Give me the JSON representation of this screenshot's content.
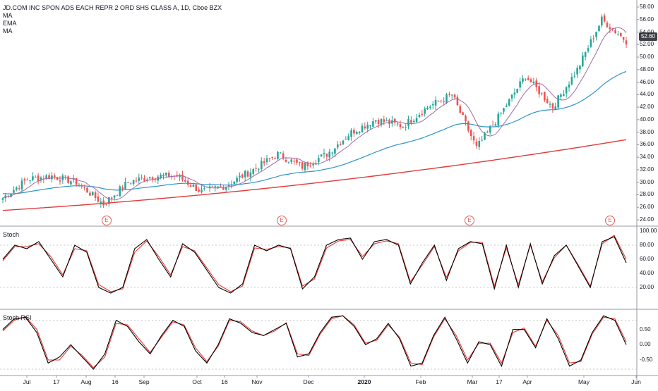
{
  "header": {
    "symbol": "JD.COM INC SPON ADS EACH REPR 2 ORD SHS CLASS A, 1D, Cboe BZX",
    "indicators": [
      "MA",
      "EMA",
      "MA"
    ]
  },
  "price_badge": "52.60",
  "earnings_marker": "E",
  "panes": {
    "stoch_title": "Stoch",
    "stochrsi_title": "Stoch RSI"
  },
  "colors": {
    "up": "#26a69a",
    "down": "#ef5350",
    "ma200": "#e03b3b",
    "ema": "#2b95c8",
    "ma_short": "#9c6aa6",
    "stoch_k": "#000000",
    "stoch_d": "#e53935"
  },
  "chart_data": [
    {
      "type": "candlestick",
      "title": "JD.COM INC SPON ADS EACH REPR 2 ORD SHS CLASS A, 1D, Cboe BZX",
      "y_ticks": [
        "58.00",
        "56.00",
        "54.00",
        "52.00",
        "50.00",
        "48.00",
        "46.00",
        "44.00",
        "42.00",
        "40.00",
        "38.00",
        "36.00",
        "34.00",
        "32.00",
        "30.00",
        "28.00",
        "26.00",
        "24.00"
      ],
      "ylim": [
        24,
        58
      ],
      "x_ticks": [
        "Jul",
        "17",
        "Aug",
        "16",
        "Sep",
        "Oct",
        "16",
        "Nov",
        "Dec",
        "2020",
        "Feb",
        "Mar",
        "17",
        "Apr",
        "May",
        "Jun"
      ],
      "approx_close_path": [
        {
          "t": "Jun-20",
          "v": 27.5
        },
        {
          "t": "Jul-01",
          "v": 30.5
        },
        {
          "t": "Jul-17",
          "v": 31.0
        },
        {
          "t": "Aug-01",
          "v": 30.0
        },
        {
          "t": "Aug-07",
          "v": 26.5
        },
        {
          "t": "Aug-16",
          "v": 30.0
        },
        {
          "t": "Sep-01",
          "v": 31.0
        },
        {
          "t": "Sep-16",
          "v": 31.0
        },
        {
          "t": "Oct-01",
          "v": 28.5
        },
        {
          "t": "Oct-16",
          "v": 29.5
        },
        {
          "t": "Nov-01",
          "v": 32.0
        },
        {
          "t": "Nov-15",
          "v": 34.5
        },
        {
          "t": "Dec-01",
          "v": 32.5
        },
        {
          "t": "Dec-16",
          "v": 34.5
        },
        {
          "t": "2020-01",
          "v": 38.0
        },
        {
          "t": "Jan-15",
          "v": 40.0
        },
        {
          "t": "Feb-01",
          "v": 39.0
        },
        {
          "t": "Feb-15",
          "v": 42.0
        },
        {
          "t": "Mar-01",
          "v": 44.0
        },
        {
          "t": "Mar-17",
          "v": 35.5
        },
        {
          "t": "Apr-01",
          "v": 41.0
        },
        {
          "t": "Apr-15",
          "v": 47.0
        },
        {
          "t": "May-01",
          "v": 42.0
        },
        {
          "t": "May-15",
          "v": 48.0
        },
        {
          "t": "May-20",
          "v": 56.0
        },
        {
          "t": "May-27",
          "v": 52.6
        }
      ],
      "series": [
        {
          "kind": "moving average (long)",
          "start": 25.5,
          "end": 36.8
        },
        {
          "kind": "EMA",
          "start": 28.2,
          "end": 44.0
        },
        {
          "kind": "moving average (short)",
          "follows": "price"
        }
      ],
      "earnings_events": [
        "Aug",
        "Nov",
        "Mar",
        "May"
      ]
    },
    {
      "type": "line",
      "title": "Stoch",
      "y_ticks": [
        "100.00",
        "80.00",
        "60.00",
        "40.00",
        "20.00"
      ],
      "ylim": [
        0,
        100
      ],
      "series": [
        {
          "values": [
            60,
            80,
            75,
            85,
            60,
            35,
            80,
            70,
            20,
            12,
            20,
            75,
            88,
            60,
            35,
            82,
            70,
            45,
            20,
            12,
            25,
            80,
            72,
            80,
            75,
            18,
            35,
            80,
            88,
            90,
            60,
            85,
            88,
            80,
            25,
            55,
            80,
            30,
            75,
            85,
            82,
            18,
            80,
            20,
            82,
            25,
            65,
            80,
            50,
            20,
            85,
            92,
            55
          ]
        },
        {
          "values": [
            58,
            78,
            78,
            82,
            64,
            38,
            75,
            72,
            24,
            14,
            18,
            70,
            86,
            64,
            38,
            78,
            72,
            48,
            24,
            14,
            22,
            76,
            74,
            78,
            76,
            22,
            32,
            76,
            86,
            88,
            64,
            82,
            86,
            82,
            28,
            52,
            78,
            34,
            72,
            84,
            84,
            22,
            76,
            24,
            80,
            28,
            62,
            80,
            52,
            22,
            82,
            94,
            60
          ]
        }
      ]
    },
    {
      "type": "line",
      "title": "Stoch RSI",
      "y_ticks": [
        "0.50",
        "0.00",
        "-0.50"
      ],
      "ylim": [
        -0.8,
        1.0
      ],
      "series": [
        {
          "values": [
            0.5,
            0.85,
            0.9,
            0.4,
            -0.6,
            -0.4,
            0.0,
            -0.4,
            -0.8,
            -0.3,
            0.8,
            0.6,
            0.1,
            -0.3,
            0.3,
            0.8,
            0.6,
            -0.2,
            -0.6,
            0.0,
            0.85,
            0.7,
            0.4,
            0.3,
            0.5,
            0.7,
            -0.4,
            -0.3,
            0.4,
            0.9,
            0.95,
            0.6,
            0.0,
            0.2,
            0.7,
            0.2,
            -0.7,
            -0.6,
            0.3,
            0.9,
            0.2,
            -0.6,
            0.1,
            0.0,
            -0.7,
            0.5,
            0.5,
            -0.1,
            0.85,
            0.2,
            -0.7,
            -0.5,
            0.4,
            0.95,
            0.8,
            0.0
          ]
        },
        {
          "values": [
            0.45,
            0.8,
            0.92,
            0.5,
            -0.5,
            -0.5,
            -0.05,
            -0.35,
            -0.75,
            -0.4,
            0.7,
            0.65,
            0.2,
            -0.25,
            0.25,
            0.75,
            0.65,
            -0.1,
            -0.55,
            -0.05,
            0.8,
            0.75,
            0.45,
            0.3,
            0.45,
            0.72,
            -0.3,
            -0.35,
            0.35,
            0.85,
            0.95,
            0.65,
            0.05,
            0.15,
            0.65,
            0.25,
            -0.6,
            -0.65,
            0.25,
            0.85,
            0.3,
            -0.5,
            0.05,
            0.05,
            -0.6,
            0.4,
            0.55,
            -0.05,
            0.8,
            0.3,
            -0.6,
            -0.55,
            0.35,
            0.9,
            0.85,
            0.1
          ]
        }
      ]
    }
  ]
}
